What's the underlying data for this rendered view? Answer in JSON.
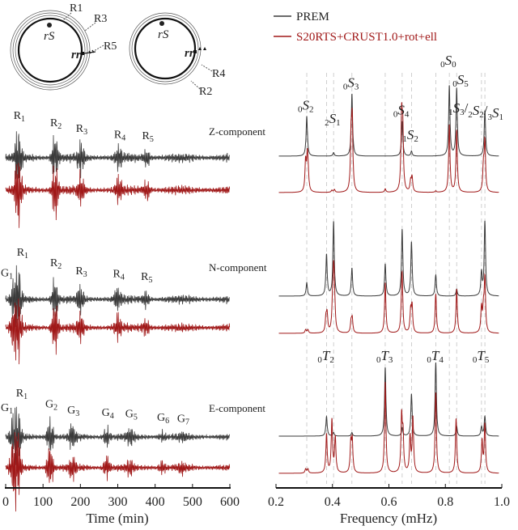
{
  "legend": {
    "entries": [
      {
        "name": "PREM",
        "color": "#3a3a3a"
      },
      {
        "name": "S20RTS+CRUST1.0+rot+ell",
        "color": "#a01818"
      }
    ]
  },
  "diagram": {
    "left": {
      "labels": [
        "R1",
        "R3",
        "R5"
      ],
      "source": "rS",
      "receiver": "rr"
    },
    "right": {
      "labels": [
        "R4",
        "R2"
      ],
      "source": "rS",
      "receiver": "rr"
    }
  },
  "chart_data": [
    {
      "type": "line",
      "title": "",
      "xlabel": "Time (min)",
      "xlim": [
        0,
        600
      ],
      "xticks": [
        0,
        100,
        200,
        300,
        400,
        500,
        600
      ],
      "panels": [
        {
          "name": "Z-component",
          "phases": [
            {
              "label": "R1",
              "t": 34
            },
            {
              "label": "R2",
              "t": 132
            },
            {
              "label": "R3",
              "t": 201
            },
            {
              "label": "R4",
              "t": 303
            },
            {
              "label": "R5",
              "t": 378
            }
          ],
          "prem_amplitudes": [
            1.0,
            0.75,
            0.55,
            0.35,
            0.3
          ],
          "model_amplitudes": [
            1.3,
            1.0,
            0.5,
            0.45,
            0.35
          ]
        },
        {
          "name": "N-component",
          "phases": [
            {
              "label": "G1",
              "t": 22
            },
            {
              "label": "R1",
              "t": 34
            },
            {
              "label": "R2",
              "t": 132
            },
            {
              "label": "R3",
              "t": 200
            },
            {
              "label": "R4",
              "t": 300
            },
            {
              "label": "R5",
              "t": 375
            }
          ],
          "prem_amplitudes": [
            0.6,
            1.0,
            0.8,
            0.5,
            0.4,
            0.3
          ],
          "model_amplitudes": [
            0.7,
            1.1,
            1.0,
            0.55,
            0.45,
            0.35
          ]
        },
        {
          "name": "E-component",
          "phases": [
            {
              "label": "G1",
              "t": 20
            },
            {
              "label": "R1",
              "t": 32
            },
            {
              "label": "G2",
              "t": 119
            },
            {
              "label": "G3",
              "t": 178
            },
            {
              "label": "G4",
              "t": 270
            },
            {
              "label": "G5",
              "t": 333
            },
            {
              "label": "G6",
              "t": 418
            },
            {
              "label": "G7",
              "t": 472
            }
          ],
          "prem_amplitudes": [
            0.8,
            1.0,
            0.75,
            0.5,
            0.4,
            0.35,
            0.2,
            0.15
          ],
          "model_amplitudes": [
            0.9,
            1.5,
            1.0,
            0.45,
            0.45,
            0.35,
            0.25,
            0.2
          ]
        }
      ]
    },
    {
      "type": "line",
      "title": "",
      "xlabel": "Frequency (mHz)",
      "xlim": [
        0.2,
        1.0
      ],
      "xticks": [
        "0.2",
        "0.4",
        "0.6",
        "0.8",
        "1.0"
      ],
      "mode_lines": [
        0.309,
        0.379,
        0.404,
        0.469,
        0.587,
        0.647,
        0.68,
        0.766,
        0.814,
        0.84,
        0.928,
        0.94
      ],
      "panels": [
        {
          "name": "Z-component",
          "modes": [
            {
              "f": 0.309,
              "label": [
                [
                  "0",
                  "S",
                  "2"
                ]
              ]
            },
            {
              "f": 0.404,
              "label": [
                [
                  "2",
                  "S",
                  "1"
                ]
              ]
            },
            {
              "f": 0.469,
              "label": [
                [
                  "0",
                  "S",
                  "3"
                ]
              ]
            },
            {
              "f": 0.647,
              "label": [
                [
                  "0",
                  "S",
                  "4"
                ]
              ]
            },
            {
              "f": 0.68,
              "label": [
                [
                  "1",
                  "S",
                  "2"
                ]
              ]
            },
            {
              "f": 0.814,
              "label": [
                [
                  "0",
                  "S",
                  "0"
                ]
              ]
            },
            {
              "f": 0.84,
              "label": [
                [
                  "0",
                  "S",
                  "5"
                ]
              ]
            },
            {
              "f": 0.94,
              "label": [
                [
                  "1",
                  "S",
                  "3"
                ],
                [
                  "2",
                  "S",
                  "2"
                ],
                [
                  "3",
                  "S",
                  "1"
                ]
              ]
            }
          ],
          "prem": [
            [
              0.309,
              0.57
            ],
            [
              0.404,
              0.05
            ],
            [
              0.469,
              0.89
            ],
            [
              0.647,
              0.5
            ],
            [
              0.68,
              0.07
            ],
            [
              0.814,
              1.0
            ],
            [
              0.84,
              0.96
            ],
            [
              0.94,
              0.65
            ]
          ],
          "model": [
            [
              0.305,
              0.42
            ],
            [
              0.311,
              0.46
            ],
            [
              0.314,
              0.2
            ],
            [
              0.398,
              0.03
            ],
            [
              0.407,
              0.04
            ],
            [
              0.466,
              0.7
            ],
            [
              0.47,
              0.96
            ],
            [
              0.587,
              0.05
            ],
            [
              0.645,
              1.0
            ],
            [
              0.649,
              0.8
            ],
            [
              0.677,
              0.15
            ],
            [
              0.682,
              0.2
            ],
            [
              0.766,
              0.02
            ],
            [
              0.814,
              0.96
            ],
            [
              0.84,
              0.88
            ],
            [
              0.935,
              0.35
            ],
            [
              0.94,
              0.7
            ]
          ]
        },
        {
          "name": "N-component",
          "modes": [],
          "prem": [
            [
              0.309,
              0.19
            ],
            [
              0.379,
              0.59
            ],
            [
              0.404,
              1.06
            ],
            [
              0.469,
              0.4
            ],
            [
              0.587,
              0.46
            ],
            [
              0.647,
              0.95
            ],
            [
              0.68,
              0.77
            ],
            [
              0.766,
              0.3
            ],
            [
              0.84,
              0.1
            ],
            [
              0.928,
              0.33
            ],
            [
              0.94,
              1.06
            ]
          ],
          "model": [
            [
              0.305,
              0.05
            ],
            [
              0.313,
              0.05
            ],
            [
              0.377,
              0.2
            ],
            [
              0.381,
              0.25
            ],
            [
              0.4,
              0.3
            ],
            [
              0.404,
              0.72
            ],
            [
              0.407,
              0.45
            ],
            [
              0.466,
              0.15
            ],
            [
              0.47,
              0.2
            ],
            [
              0.587,
              0.72
            ],
            [
              0.645,
              0.3
            ],
            [
              0.647,
              0.66
            ],
            [
              0.677,
              0.3
            ],
            [
              0.682,
              0.37
            ],
            [
              0.766,
              0.56
            ],
            [
              0.84,
              0.63
            ],
            [
              0.928,
              0.35
            ],
            [
              0.935,
              0.3
            ],
            [
              0.94,
              0.75
            ]
          ]
        },
        {
          "name": "E-component",
          "modes": [
            {
              "f": 0.379,
              "label": [
                [
                  "0",
                  "T",
                  "2"
                ]
              ]
            },
            {
              "f": 0.587,
              "label": [
                [
                  "0",
                  "T",
                  "3"
                ]
              ]
            },
            {
              "f": 0.766,
              "label": [
                [
                  "0",
                  "T",
                  "4"
                ]
              ]
            },
            {
              "f": 0.928,
              "label": [
                [
                  "0",
                  "T",
                  "5"
                ]
              ]
            }
          ],
          "prem": [
            [
              0.379,
              0.28
            ],
            [
              0.404,
              0.05
            ],
            [
              0.469,
              0.05
            ],
            [
              0.587,
              0.98
            ],
            [
              0.647,
              0.12
            ],
            [
              0.68,
              0.6
            ],
            [
              0.766,
              1.05
            ],
            [
              0.84,
              0.14
            ],
            [
              0.928,
              0.13
            ],
            [
              0.94,
              0.28
            ]
          ],
          "model": [
            [
              0.305,
              0.06
            ],
            [
              0.313,
              0.06
            ],
            [
              0.379,
              0.55
            ],
            [
              0.398,
              0.75
            ],
            [
              0.41,
              0.5
            ],
            [
              0.465,
              0.4
            ],
            [
              0.47,
              0.45
            ],
            [
              0.587,
              1.3
            ],
            [
              0.645,
              0.78
            ],
            [
              0.65,
              0.5
            ],
            [
              0.675,
              0.5
            ],
            [
              0.685,
              0.78
            ],
            [
              0.766,
              1.15
            ],
            [
              0.838,
              0.78
            ],
            [
              0.93,
              0.45
            ],
            [
              0.94,
              0.69
            ]
          ]
        }
      ]
    }
  ]
}
